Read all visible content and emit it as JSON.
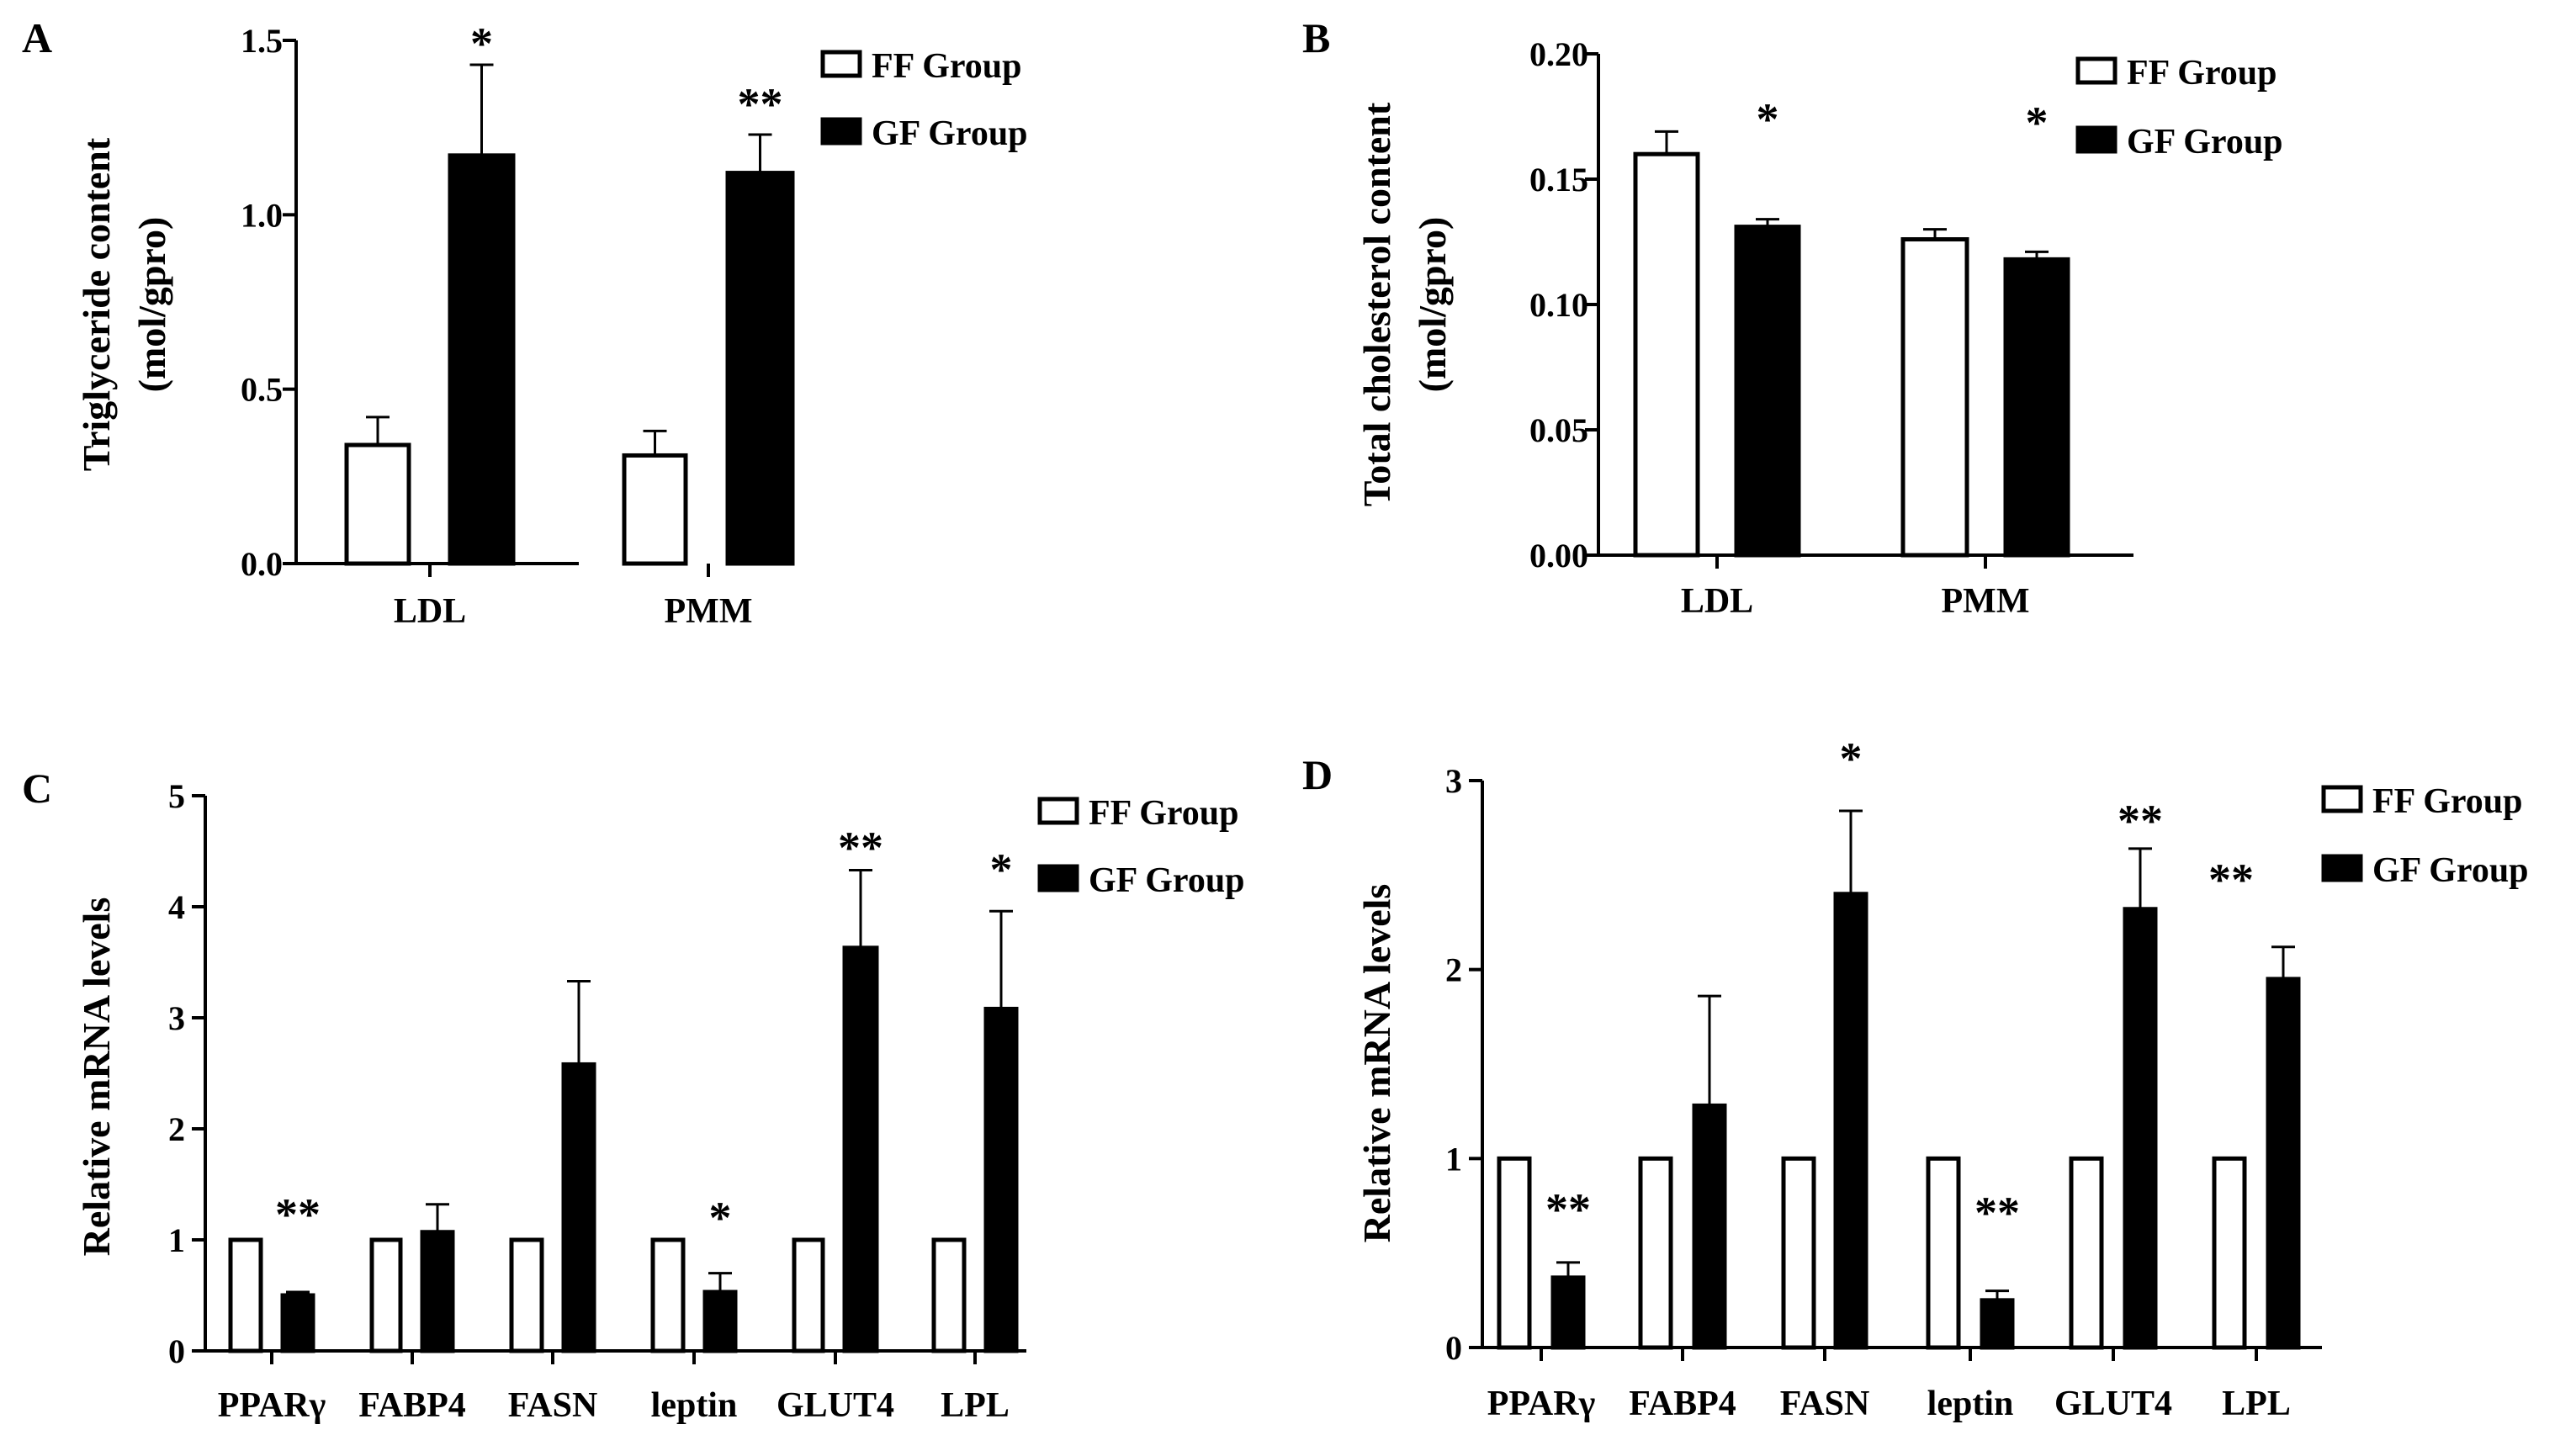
{
  "colors": {
    "ff_fill": "#ffffff",
    "gf_fill": "#000000",
    "stroke": "#000000"
  },
  "chart_data": [
    {
      "type": "bar",
      "panel": "A",
      "title": "",
      "ylabel_lines": [
        "Triglyceride content",
        "(mol/gpro)"
      ],
      "xlabel": "",
      "categories": [
        "LDL",
        "PMM"
      ],
      "ylim": [
        0,
        1.5
      ],
      "yticks": [
        0.0,
        0.5,
        1.0,
        1.5
      ],
      "ytick_labels": [
        "0.0",
        "0.5",
        "1.0",
        "1.5"
      ],
      "legend": [
        "FF Group",
        "GF Group"
      ],
      "series": [
        {
          "name": "FF Group",
          "values": [
            0.34,
            0.31
          ],
          "errors": [
            0.08,
            0.07
          ]
        },
        {
          "name": "GF Group",
          "values": [
            1.17,
            1.12
          ],
          "errors": [
            0.26,
            0.11
          ]
        }
      ],
      "annotations": [
        "*",
        "**"
      ]
    },
    {
      "type": "bar",
      "panel": "B",
      "title": "",
      "ylabel_lines": [
        "Total cholesterol  content",
        "(mol/gpro)"
      ],
      "xlabel": "",
      "categories": [
        "LDL",
        "PMM"
      ],
      "ylim": [
        0,
        0.2
      ],
      "yticks": [
        0.0,
        0.05,
        0.1,
        0.15,
        0.2
      ],
      "ytick_labels": [
        "0.00",
        "0.05",
        "0.10",
        "0.15",
        "0.20"
      ],
      "legend": [
        "FF Group",
        "GF Group"
      ],
      "series": [
        {
          "name": "FF Group",
          "values": [
            0.16,
            0.126
          ],
          "errors": [
            0.009,
            0.004
          ]
        },
        {
          "name": "GF Group",
          "values": [
            0.131,
            0.118
          ],
          "errors": [
            0.003,
            0.003
          ]
        }
      ],
      "annotations": [
        "*",
        "*"
      ]
    },
    {
      "type": "bar",
      "panel": "C",
      "title": "",
      "ylabel_lines": [
        "Relative mRNA  levels"
      ],
      "xlabel": "",
      "categories": [
        "PPARγ",
        "FABP4",
        "FASN",
        "leptin",
        "GLUT4",
        "LPL"
      ],
      "ylim": [
        0,
        5
      ],
      "yticks": [
        0,
        1,
        2,
        3,
        4,
        5
      ],
      "ytick_labels": [
        "0",
        "1",
        "2",
        "3",
        "4",
        "5"
      ],
      "legend": [
        "FF Group",
        "GF Group"
      ],
      "series": [
        {
          "name": "FF Group",
          "values": [
            1,
            1,
            1,
            1,
            1,
            1
          ],
          "errors": [
            0,
            0,
            0,
            0,
            0,
            0
          ]
        },
        {
          "name": "GF Group",
          "values": [
            0.5,
            1.07,
            2.58,
            0.53,
            3.63,
            3.08
          ],
          "errors": [
            0.03,
            0.25,
            0.75,
            0.17,
            0.7,
            0.88
          ]
        }
      ],
      "annotations": [
        "**",
        "",
        "",
        "*",
        "**",
        "*"
      ]
    },
    {
      "type": "bar",
      "panel": "D",
      "title": "",
      "ylabel_lines": [
        "Relative mRNA  levels"
      ],
      "xlabel": "",
      "categories": [
        "PPARγ",
        "FABP4",
        "FASN",
        "leptin",
        "GLUT4",
        "LPL"
      ],
      "ylim": [
        0,
        3
      ],
      "yticks": [
        0,
        1,
        2,
        3
      ],
      "ytick_labels": [
        "0",
        "1",
        "2",
        "3"
      ],
      "legend": [
        "FF Group",
        "GF Group"
      ],
      "series": [
        {
          "name": "FF Group",
          "values": [
            1,
            1,
            1,
            1,
            1,
            1
          ],
          "errors": [
            0,
            0,
            0,
            0,
            0,
            0
          ]
        },
        {
          "name": "GF Group",
          "values": [
            0.37,
            1.28,
            2.4,
            0.25,
            2.32,
            1.95
          ],
          "errors": [
            0.08,
            0.58,
            0.44,
            0.05,
            0.32,
            0.17
          ]
        }
      ],
      "annotations": [
        "**",
        "",
        "*",
        "**",
        "**",
        "**"
      ]
    }
  ]
}
